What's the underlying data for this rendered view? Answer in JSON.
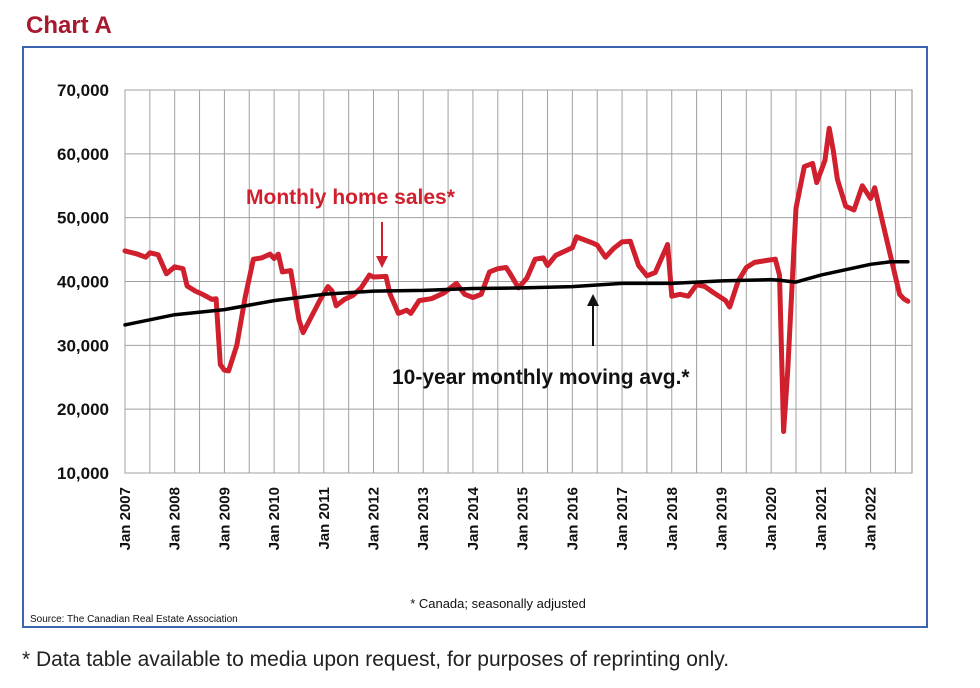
{
  "header": {
    "title": "Chart A"
  },
  "footer": {
    "note": "* Data table available to media upon request, for purposes of reprinting only."
  },
  "chart_data": {
    "type": "line",
    "title": "Chart A",
    "xlabel": "",
    "ylabel": "",
    "ylim": [
      10000,
      70000
    ],
    "yticks": [
      "10,000",
      "20,000",
      "30,000",
      "40,000",
      "50,000",
      "60,000",
      "70,000"
    ],
    "xticks": [
      "Jan 2007",
      "Jan 2008",
      "Jan 2009",
      "Jan 2010",
      "Jan 2011",
      "Jan 2012",
      "Jan 2013",
      "Jan 2014",
      "Jan 2015",
      "Jan 2016",
      "Jan 2017",
      "Jan 2018",
      "Jan 2019",
      "Jan 2020",
      "Jan 2021",
      "Jan 2022"
    ],
    "grid": true,
    "annotations": {
      "sales_label": "Monthly home sales*",
      "avg_label": "10-year monthly moving avg.*",
      "note": "* Canada; seasonally adjusted",
      "source": "Source: The Canadian Real Estate Association"
    },
    "colors": {
      "sales": "#d0202e",
      "avg": "#000000",
      "frame": "#3a63b0",
      "title": "#a6192e"
    },
    "series": [
      {
        "key": "sales",
        "points": [
          [
            "2007-01",
            44800
          ],
          [
            "2007-04",
            44300
          ],
          [
            "2007-06",
            43800
          ],
          [
            "2007-07",
            44500
          ],
          [
            "2007-09",
            44200
          ],
          [
            "2007-11",
            41200
          ],
          [
            "2008-01",
            42300
          ],
          [
            "2008-03",
            42000
          ],
          [
            "2008-04",
            39300
          ],
          [
            "2008-06",
            38500
          ],
          [
            "2008-08",
            37900
          ],
          [
            "2008-10",
            37200
          ],
          [
            "2008-11",
            37300
          ],
          [
            "2008-12",
            27000
          ],
          [
            "2009-01",
            26100
          ],
          [
            "2009-02",
            26000
          ],
          [
            "2009-04",
            30000
          ],
          [
            "2009-06",
            37500
          ],
          [
            "2009-08",
            43500
          ],
          [
            "2009-10",
            43700
          ],
          [
            "2009-12",
            44300
          ],
          [
            "2010-01",
            43600
          ],
          [
            "2010-02",
            44300
          ],
          [
            "2010-03",
            41500
          ],
          [
            "2010-05",
            41700
          ],
          [
            "2010-07",
            34000
          ],
          [
            "2010-08",
            32000
          ],
          [
            "2010-10",
            34500
          ],
          [
            "2010-12",
            37000
          ],
          [
            "2011-02",
            39200
          ],
          [
            "2011-03",
            38500
          ],
          [
            "2011-04",
            36200
          ],
          [
            "2011-06",
            37200
          ],
          [
            "2011-08",
            37800
          ],
          [
            "2011-10",
            39000
          ],
          [
            "2011-12",
            41000
          ],
          [
            "2012-01",
            40700
          ],
          [
            "2012-04",
            40800
          ],
          [
            "2012-05",
            38000
          ],
          [
            "2012-07",
            35000
          ],
          [
            "2012-09",
            35500
          ],
          [
            "2012-10",
            35000
          ],
          [
            "2012-12",
            37000
          ],
          [
            "2013-03",
            37300
          ],
          [
            "2013-06",
            38200
          ],
          [
            "2013-09",
            39700
          ],
          [
            "2013-11",
            38000
          ],
          [
            "2014-01",
            37500
          ],
          [
            "2014-03",
            38000
          ],
          [
            "2014-05",
            41500
          ],
          [
            "2014-07",
            42000
          ],
          [
            "2014-09",
            42200
          ],
          [
            "2014-10",
            41200
          ],
          [
            "2014-12",
            39000
          ],
          [
            "2015-02",
            40500
          ],
          [
            "2015-04",
            43500
          ],
          [
            "2015-06",
            43700
          ],
          [
            "2015-07",
            42500
          ],
          [
            "2015-09",
            44100
          ],
          [
            "2015-11",
            44700
          ],
          [
            "2016-01",
            45300
          ],
          [
            "2016-02",
            47000
          ],
          [
            "2016-04",
            46500
          ],
          [
            "2016-06",
            46000
          ],
          [
            "2016-07",
            45700
          ],
          [
            "2016-09",
            43800
          ],
          [
            "2016-11",
            45200
          ],
          [
            "2017-01",
            46200
          ],
          [
            "2017-03",
            46300
          ],
          [
            "2017-05",
            42500
          ],
          [
            "2017-07",
            40900
          ],
          [
            "2017-09",
            41400
          ],
          [
            "2017-12",
            45800
          ],
          [
            "2018-01",
            37700
          ],
          [
            "2018-03",
            38000
          ],
          [
            "2018-05",
            37700
          ],
          [
            "2018-07",
            39500
          ],
          [
            "2018-09",
            39200
          ],
          [
            "2018-11",
            38300
          ],
          [
            "2019-02",
            37000
          ],
          [
            "2019-03",
            36000
          ],
          [
            "2019-05",
            40000
          ],
          [
            "2019-07",
            42200
          ],
          [
            "2019-09",
            43000
          ],
          [
            "2019-12",
            43300
          ],
          [
            "2020-02",
            43500
          ],
          [
            "2020-03",
            41000
          ],
          [
            "2020-04",
            16500
          ],
          [
            "2020-05",
            26000
          ],
          [
            "2020-07",
            51500
          ],
          [
            "2020-09",
            58000
          ],
          [
            "2020-11",
            58500
          ],
          [
            "2020-12",
            55500
          ],
          [
            "2021-02",
            59000
          ],
          [
            "2021-03",
            64000
          ],
          [
            "2021-04",
            60500
          ],
          [
            "2021-05",
            56000
          ],
          [
            "2021-07",
            51800
          ],
          [
            "2021-09",
            51200
          ],
          [
            "2021-11",
            55000
          ],
          [
            "2022-01",
            53000
          ],
          [
            "2022-02",
            54700
          ],
          [
            "2022-04",
            49000
          ],
          [
            "2022-06",
            43500
          ],
          [
            "2022-08",
            38000
          ],
          [
            "2022-09",
            37300
          ],
          [
            "2022-10",
            36900
          ]
        ]
      },
      {
        "key": "avg",
        "points": [
          [
            "2007-01",
            33200
          ],
          [
            "2008-01",
            34800
          ],
          [
            "2009-01",
            35600
          ],
          [
            "2010-01",
            37000
          ],
          [
            "2011-01",
            38000
          ],
          [
            "2012-01",
            38500
          ],
          [
            "2013-01",
            38600
          ],
          [
            "2014-01",
            38900
          ],
          [
            "2015-01",
            39000
          ],
          [
            "2016-01",
            39200
          ],
          [
            "2017-01",
            39700
          ],
          [
            "2018-01",
            39700
          ],
          [
            "2019-01",
            40100
          ],
          [
            "2020-01",
            40300
          ],
          [
            "2020-03",
            40200
          ],
          [
            "2020-07",
            39900
          ],
          [
            "2021-01",
            41000
          ],
          [
            "2022-01",
            42700
          ],
          [
            "2022-06",
            43100
          ],
          [
            "2022-10",
            43100
          ]
        ]
      }
    ]
  }
}
